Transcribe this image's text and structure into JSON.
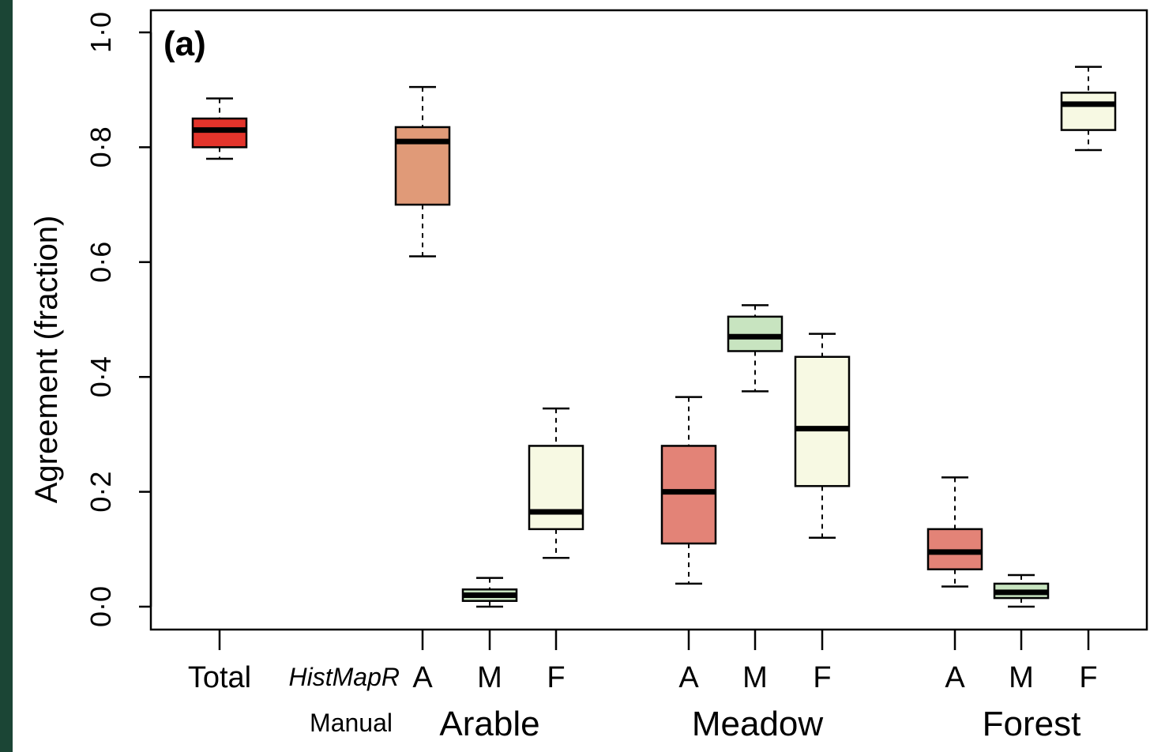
{
  "chart_data": {
    "type": "boxplot",
    "panel_label": "(a)",
    "ylabel": "Agreement (fraction)",
    "ylim": [
      -0.04,
      1.04
    ],
    "yticks": [
      0.0,
      0.2,
      0.4,
      0.6,
      0.8,
      1.0
    ],
    "ytick_labels": [
      "0·0",
      "0·2",
      "0·4",
      "0·6",
      "0·8",
      "1·0"
    ],
    "row_labels": {
      "histmapr": "HistMapR",
      "manual": "Manual"
    },
    "groups": [
      {
        "label": "Arable"
      },
      {
        "label": "Meadow"
      },
      {
        "label": "Forest"
      }
    ],
    "boxes": [
      {
        "label": "Total",
        "min": 0.78,
        "q1": 0.8,
        "median": 0.83,
        "q3": 0.85,
        "max": 0.885,
        "color": "#e3342b"
      },
      {
        "label": "A",
        "group": "Arable",
        "min": 0.61,
        "q1": 0.7,
        "median": 0.81,
        "q3": 0.835,
        "max": 0.905,
        "color": "#e09a78"
      },
      {
        "label": "M",
        "group": "Arable",
        "min": 0.0,
        "q1": 0.01,
        "median": 0.02,
        "q3": 0.03,
        "max": 0.05,
        "color": "#c8e4c0"
      },
      {
        "label": "F",
        "group": "Arable",
        "min": 0.085,
        "q1": 0.135,
        "median": 0.165,
        "q3": 0.28,
        "max": 0.345,
        "color": "#f7f9e3"
      },
      {
        "label": "A",
        "group": "Meadow",
        "min": 0.04,
        "q1": 0.11,
        "median": 0.2,
        "q3": 0.28,
        "max": 0.365,
        "color": "#e38377"
      },
      {
        "label": "M",
        "group": "Meadow",
        "min": 0.375,
        "q1": 0.445,
        "median": 0.47,
        "q3": 0.505,
        "max": 0.525,
        "color": "#c8e4c0"
      },
      {
        "label": "F",
        "group": "Meadow",
        "min": 0.12,
        "q1": 0.21,
        "median": 0.31,
        "q3": 0.435,
        "max": 0.475,
        "color": "#f7f9e3"
      },
      {
        "label": "A",
        "group": "Forest",
        "min": 0.035,
        "q1": 0.065,
        "median": 0.095,
        "q3": 0.135,
        "max": 0.225,
        "color": "#e38377"
      },
      {
        "label": "M",
        "group": "Forest",
        "min": 0.0,
        "q1": 0.015,
        "median": 0.025,
        "q3": 0.04,
        "max": 0.055,
        "color": "#c8e4c0"
      },
      {
        "label": "F",
        "group": "Forest",
        "min": 0.795,
        "q1": 0.83,
        "median": 0.875,
        "q3": 0.895,
        "max": 0.94,
        "color": "#f7f9e3"
      }
    ]
  }
}
